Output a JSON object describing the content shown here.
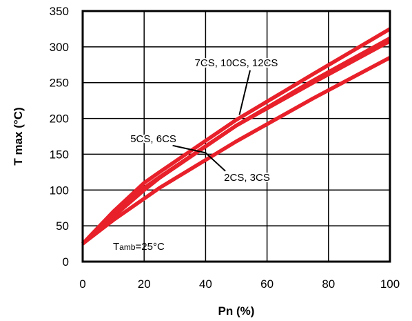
{
  "chart_data": {
    "type": "line",
    "title": "",
    "xlabel": "Pn (%)",
    "ylabel": "T max  (°C)",
    "xlim": [
      0,
      100
    ],
    "ylim": [
      0,
      350
    ],
    "xticks": [
      "0",
      "20",
      "40",
      "60",
      "80",
      "100"
    ],
    "yticks": [
      "0",
      "50",
      "100",
      "150",
      "200",
      "250",
      "300",
      "350"
    ],
    "grid": true,
    "line_color": "#e8202a",
    "series": [
      {
        "name": "7CS, 10CS, 12CS",
        "x": [
          0,
          10,
          20,
          25,
          50,
          75,
          100
        ],
        "y": [
          25,
          70,
          110,
          125,
          198,
          262,
          325
        ]
      },
      {
        "name": "",
        "x": [
          0,
          10,
          20,
          25,
          50,
          75,
          100
        ],
        "y": [
          25,
          66,
          103,
          118,
          190,
          253,
          312
        ]
      },
      {
        "name": "5CS, 6CS",
        "x": [
          0,
          10,
          20,
          25,
          50,
          75,
          100
        ],
        "y": [
          25,
          63,
          100,
          117,
          190,
          250,
          308
        ]
      },
      {
        "name": "2CS, 3CS",
        "x": [
          0,
          10,
          20,
          25,
          50,
          75,
          100
        ],
        "y": [
          25,
          58,
          88,
          103,
          168,
          228,
          285
        ]
      }
    ],
    "annotations": [
      {
        "id": "a1",
        "text": "7CS, 10CS, 12CS",
        "leader_x": 51,
        "leader_y": 205,
        "label_x": 50,
        "label_y": 273
      },
      {
        "id": "a2",
        "text": "5CS, 6CS",
        "leader_x": 40,
        "leader_y": 152,
        "label_x": 23,
        "label_y": 167
      },
      {
        "id": "a3",
        "text": "2CS, 3CS",
        "leader_x": 40,
        "leader_y": 152,
        "label_x": 46,
        "label_y": 113
      }
    ],
    "ambient_label": {
      "main": "T",
      "sub": "amb",
      "rest": "=25°C"
    }
  }
}
